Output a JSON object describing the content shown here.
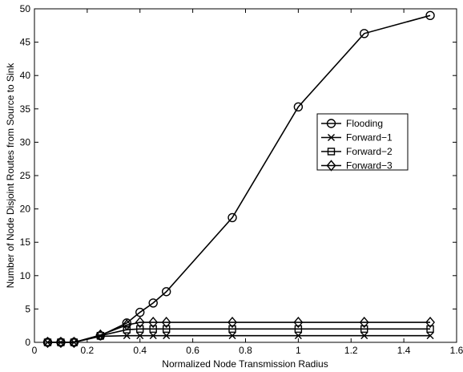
{
  "chart_data": {
    "type": "line",
    "title": "",
    "xlabel": "Normalized Node Transmission Radius",
    "ylabel": "Number of Node Disjoint Routes from Source to Sink",
    "xlim": [
      0,
      1.6
    ],
    "ylim": [
      0,
      50
    ],
    "xticks": [
      0,
      0.2,
      0.4,
      0.6,
      0.8,
      1,
      1.2,
      1.4,
      1.6
    ],
    "xtick_labels": [
      "0",
      "0.2",
      "0.4",
      "0.6",
      "0.8",
      "1",
      "1.2",
      "1.4",
      "1.6"
    ],
    "yticks": [
      0,
      5,
      10,
      15,
      20,
      25,
      30,
      35,
      40,
      45,
      50
    ],
    "ytick_labels": [
      "0",
      "5",
      "10",
      "15",
      "20",
      "25",
      "30",
      "35",
      "40",
      "45",
      "50"
    ],
    "grid": false,
    "legend_position": "right",
    "x": [
      0.05,
      0.1,
      0.15,
      0.25,
      0.35,
      0.4,
      0.45,
      0.5,
      0.75,
      1.0,
      1.25,
      1.5
    ],
    "series": [
      {
        "name": "Flooding",
        "marker": "circle",
        "values": [
          0,
          0,
          0,
          1.0,
          2.9,
          4.5,
          5.9,
          7.6,
          18.7,
          35.3,
          46.3,
          49.0
        ]
      },
      {
        "name": "Forward−1",
        "marker": "x",
        "values": [
          0,
          0,
          0,
          0.9,
          1.0,
          1.0,
          1.0,
          1.0,
          1.0,
          1.0,
          1.0,
          1.0
        ]
      },
      {
        "name": "Forward−2",
        "marker": "square",
        "values": [
          0,
          0,
          0,
          1.0,
          1.9,
          2.0,
          2.0,
          2.0,
          2.0,
          2.0,
          2.0,
          2.0
        ]
      },
      {
        "name": "Forward−3",
        "marker": "diamond",
        "values": [
          0,
          0,
          0,
          1.1,
          2.6,
          3.0,
          3.0,
          3.0,
          3.0,
          3.0,
          3.0,
          3.0
        ]
      }
    ]
  }
}
